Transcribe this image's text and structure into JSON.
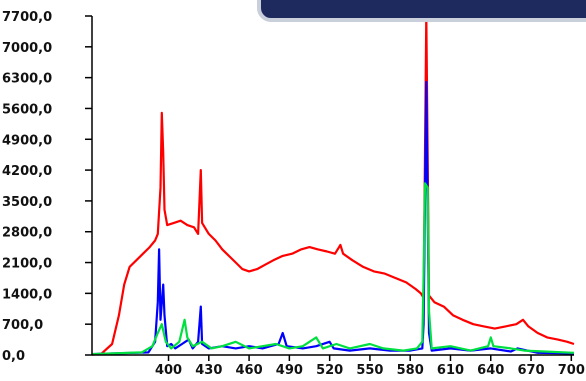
{
  "chart_data": {
    "type": "line",
    "title": "",
    "xlabel": "",
    "ylabel": "",
    "xlim": [
      343,
      702
    ],
    "ylim": [
      0,
      7700
    ],
    "grid": false,
    "legend": "none",
    "x_ticks": [
      400,
      430,
      460,
      490,
      520,
      550,
      580,
      610,
      640,
      670,
      700
    ],
    "y_ticks": [
      0,
      700,
      1400,
      2100,
      2800,
      3500,
      4200,
      4900,
      5600,
      6300,
      7000,
      7700
    ],
    "x_tick_labels": [
      "400",
      "430",
      "460",
      "490",
      "520",
      "550",
      "580",
      "610",
      "640",
      "670",
      "700"
    ],
    "y_tick_labels": [
      "0,0",
      "700,0",
      "1400,0",
      "2100,0",
      "2800,0",
      "3500,0",
      "4200,0",
      "4900,0",
      "5600,0",
      "6300,0",
      "7000,0",
      "7700,0"
    ],
    "series": [
      {
        "color": "#ff0000",
        "points": [
          [
            343,
            10
          ],
          [
            350,
            30
          ],
          [
            358,
            250
          ],
          [
            363,
            900
          ],
          [
            367,
            1600
          ],
          [
            371,
            2000
          ],
          [
            376,
            2150
          ],
          [
            381,
            2300
          ],
          [
            386,
            2450
          ],
          [
            390,
            2600
          ],
          [
            392,
            2750
          ],
          [
            394,
            3800
          ],
          [
            395,
            5500
          ],
          [
            396,
            4600
          ],
          [
            397,
            3300
          ],
          [
            399,
            2950
          ],
          [
            404,
            3000
          ],
          [
            409,
            3050
          ],
          [
            414,
            2950
          ],
          [
            419,
            2900
          ],
          [
            422,
            2750
          ],
          [
            424,
            4200
          ],
          [
            425,
            3000
          ],
          [
            430,
            2750
          ],
          [
            435,
            2600
          ],
          [
            440,
            2400
          ],
          [
            445,
            2250
          ],
          [
            450,
            2100
          ],
          [
            455,
            1950
          ],
          [
            460,
            1900
          ],
          [
            466,
            1950
          ],
          [
            472,
            2050
          ],
          [
            478,
            2150
          ],
          [
            485,
            2250
          ],
          [
            492,
            2300
          ],
          [
            499,
            2400
          ],
          [
            505,
            2450
          ],
          [
            511,
            2400
          ],
          [
            518,
            2350
          ],
          [
            524,
            2300
          ],
          [
            528,
            2500
          ],
          [
            530,
            2300
          ],
          [
            537,
            2150
          ],
          [
            545,
            2000
          ],
          [
            553,
            1900
          ],
          [
            561,
            1850
          ],
          [
            569,
            1750
          ],
          [
            577,
            1650
          ],
          [
            584,
            1500
          ],
          [
            588,
            1400
          ],
          [
            590,
            1300
          ],
          [
            592,
            7700
          ],
          [
            594,
            1350
          ],
          [
            598,
            1200
          ],
          [
            605,
            1100
          ],
          [
            612,
            900
          ],
          [
            619,
            800
          ],
          [
            627,
            700
          ],
          [
            635,
            650
          ],
          [
            643,
            600
          ],
          [
            651,
            650
          ],
          [
            659,
            700
          ],
          [
            664,
            800
          ],
          [
            668,
            650
          ],
          [
            675,
            500
          ],
          [
            682,
            400
          ],
          [
            690,
            350
          ],
          [
            697,
            300
          ],
          [
            702,
            250
          ]
        ]
      },
      {
        "color": "#0000ff",
        "points": [
          [
            343,
            20
          ],
          [
            385,
            60
          ],
          [
            390,
            300
          ],
          [
            392,
            1200
          ],
          [
            393,
            2400
          ],
          [
            394,
            800
          ],
          [
            396,
            1600
          ],
          [
            397,
            900
          ],
          [
            399,
            200
          ],
          [
            402,
            250
          ],
          [
            405,
            150
          ],
          [
            410,
            250
          ],
          [
            415,
            350
          ],
          [
            418,
            150
          ],
          [
            422,
            300
          ],
          [
            424,
            1100
          ],
          [
            425,
            250
          ],
          [
            430,
            150
          ],
          [
            440,
            200
          ],
          [
            450,
            150
          ],
          [
            460,
            200
          ],
          [
            470,
            150
          ],
          [
            482,
            250
          ],
          [
            485,
            500
          ],
          [
            488,
            200
          ],
          [
            500,
            150
          ],
          [
            510,
            200
          ],
          [
            520,
            300
          ],
          [
            523,
            150
          ],
          [
            535,
            100
          ],
          [
            550,
            150
          ],
          [
            565,
            100
          ],
          [
            580,
            100
          ],
          [
            589,
            150
          ],
          [
            590,
            700
          ],
          [
            592,
            6200
          ],
          [
            594,
            500
          ],
          [
            596,
            100
          ],
          [
            610,
            150
          ],
          [
            625,
            100
          ],
          [
            640,
            150
          ],
          [
            655,
            80
          ],
          [
            660,
            150
          ],
          [
            675,
            50
          ],
          [
            690,
            40
          ],
          [
            702,
            30
          ]
        ]
      },
      {
        "color": "#00e040",
        "points": [
          [
            343,
            20
          ],
          [
            380,
            60
          ],
          [
            388,
            200
          ],
          [
            392,
            500
          ],
          [
            395,
            700
          ],
          [
            398,
            300
          ],
          [
            402,
            150
          ],
          [
            408,
            300
          ],
          [
            412,
            800
          ],
          [
            414,
            400
          ],
          [
            418,
            200
          ],
          [
            425,
            300
          ],
          [
            432,
            150
          ],
          [
            440,
            200
          ],
          [
            450,
            300
          ],
          [
            460,
            150
          ],
          [
            470,
            200
          ],
          [
            480,
            250
          ],
          [
            490,
            150
          ],
          [
            500,
            200
          ],
          [
            510,
            400
          ],
          [
            515,
            150
          ],
          [
            525,
            250
          ],
          [
            535,
            150
          ],
          [
            550,
            250
          ],
          [
            560,
            150
          ],
          [
            575,
            100
          ],
          [
            585,
            150
          ],
          [
            589,
            300
          ],
          [
            590,
            1800
          ],
          [
            591,
            3900
          ],
          [
            593,
            3800
          ],
          [
            594,
            1000
          ],
          [
            596,
            150
          ],
          [
            610,
            200
          ],
          [
            625,
            100
          ],
          [
            638,
            200
          ],
          [
            640,
            400
          ],
          [
            642,
            200
          ],
          [
            655,
            150
          ],
          [
            665,
            100
          ],
          [
            680,
            80
          ],
          [
            702,
            50
          ]
        ]
      }
    ]
  }
}
